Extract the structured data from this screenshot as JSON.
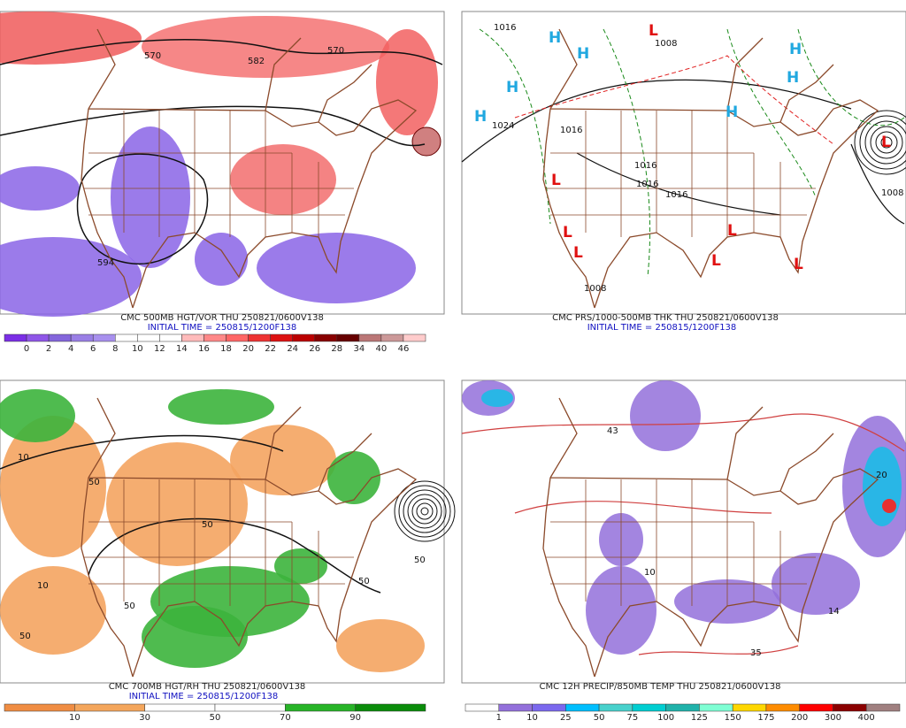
{
  "panels": [
    {
      "caption": "CMC 500MB HGT/VOR THU 250821/0600V138",
      "initial_time": "INITIAL TIME = 250815/1200F138",
      "colorbar_labels": [
        0,
        2,
        4,
        6,
        8,
        10,
        12,
        14,
        16,
        18,
        20,
        22,
        24,
        26,
        28,
        34,
        40,
        46
      ],
      "labels": [
        "570",
        "582",
        "570",
        "594"
      ]
    },
    {
      "caption": "CMC PRS/1000-500MB THK THU 250821/0600V138",
      "initial_time": "INITIAL TIME = 250815/1200F138",
      "labels": [
        "H",
        "H",
        "H",
        "H",
        "H",
        "H",
        "H",
        "L",
        "L",
        "L",
        "L",
        "L",
        "L",
        "L",
        "L",
        "1016",
        "1008",
        "1024",
        "1016",
        "1016",
        "1016",
        "1016",
        "1008",
        "1008"
      ]
    },
    {
      "caption": "CMC 700MB HGT/RH THU 250821/0600V138",
      "initial_time": "INITIAL TIME = 250815/1200F138",
      "colorbar_labels": [
        10,
        30,
        50,
        70,
        90
      ],
      "labels": [
        "50",
        "50",
        "50",
        "50",
        "10",
        "10",
        "50",
        "50"
      ]
    },
    {
      "caption": "CMC 12H PRECIP/850MB TEMP THU 250821/0600V138",
      "colorbar_labels": [
        1,
        10,
        25,
        50,
        75,
        100,
        125,
        150,
        175,
        200,
        300,
        400
      ],
      "labels": [
        "35",
        "14",
        "20",
        "43",
        "10"
      ]
    }
  ]
}
